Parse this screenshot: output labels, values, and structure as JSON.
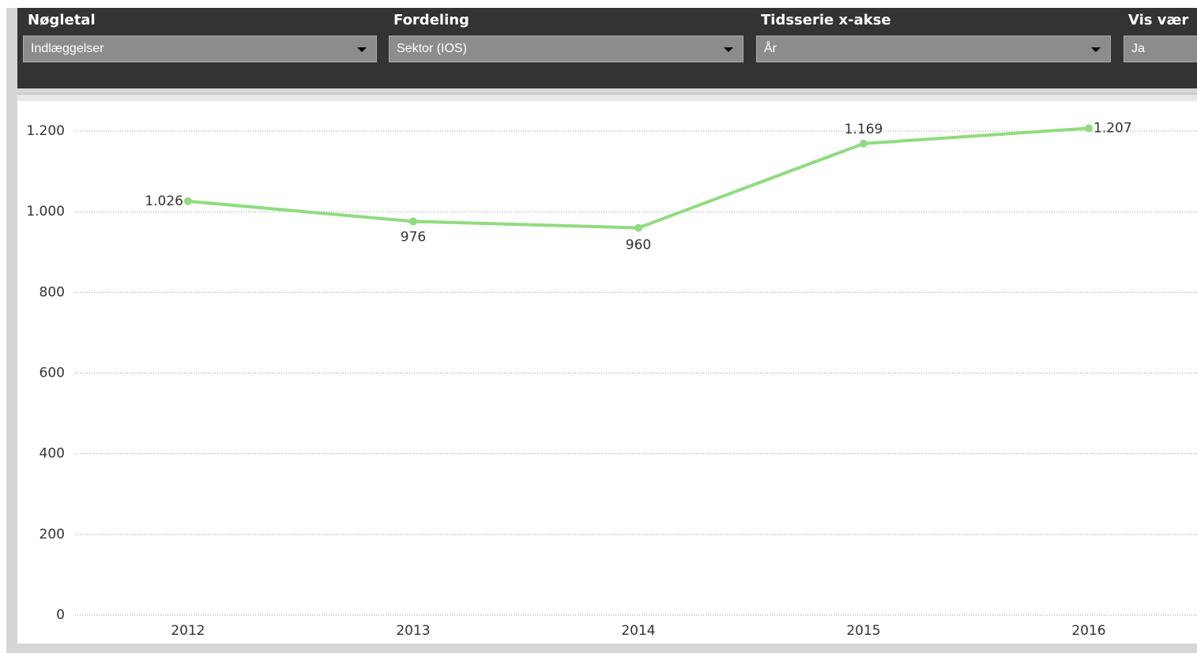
{
  "controls": [
    {
      "label": "Nøgletal",
      "value": "Indlæggelser"
    },
    {
      "label": "Fordeling",
      "value": "Sektor (IOS)"
    },
    {
      "label": "Tidsserie x-akse",
      "value": "År"
    },
    {
      "label": "Vis vær",
      "value": "Ja"
    }
  ],
  "chart_data": {
    "type": "line",
    "categories": [
      "2012",
      "2013",
      "2014",
      "2015",
      "2016"
    ],
    "series": [
      {
        "name": null,
        "color": "#8fdc7f",
        "values": [
          1026,
          976,
          960,
          1169,
          1207
        ],
        "value_labels": [
          "1.026",
          "976",
          "960",
          "1.169",
          "1.207"
        ]
      }
    ],
    "ylim": [
      0,
      1200
    ],
    "yticks": [
      0,
      200,
      400,
      600,
      800,
      {
        "value": 1000,
        "label": "1.000"
      },
      {
        "value": 1200,
        "label": "1.200"
      }
    ],
    "grid": true
  }
}
